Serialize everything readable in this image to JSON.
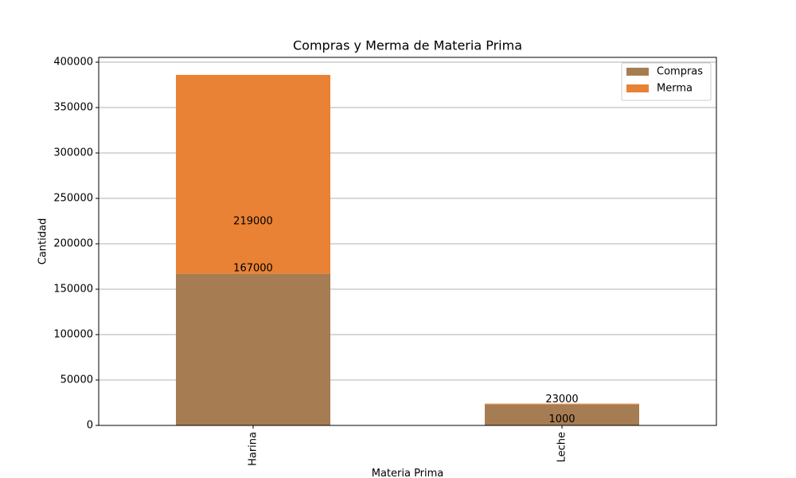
{
  "chart_data": {
    "type": "stacked_bar",
    "title": "Compras y Merma de Materia Prima",
    "x_label": "Materia Prima",
    "y_label": "Cantidad",
    "categories": [
      "Harina",
      "Leche"
    ],
    "series": [
      {
        "name": "Compras",
        "color": "#a67c52",
        "values": [
          167000,
          23000
        ]
      },
      {
        "name": "Merma",
        "color": "#e98235",
        "values": [
          219000,
          1000
        ]
      }
    ],
    "ylim": [
      0,
      405300
    ],
    "yticks": [
      0,
      50000,
      100000,
      150000,
      200000,
      250000,
      300000,
      350000,
      400000
    ],
    "grid": true,
    "legend": "upper right"
  }
}
